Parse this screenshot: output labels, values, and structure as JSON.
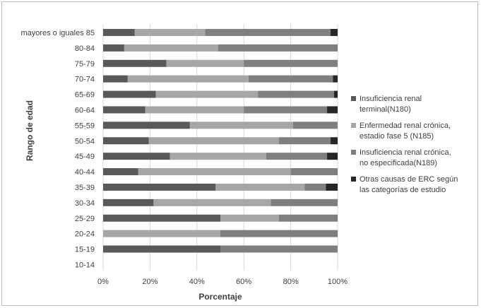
{
  "chart_data": {
    "type": "bar",
    "orientation": "horizontal",
    "stacked": "percent",
    "categories": [
      "mayores o iguales 85",
      "80-84",
      "75-79",
      "70-74",
      "65-69",
      "60-64",
      "55-59",
      "50-54",
      "45-49",
      "40-44",
      "35-39",
      "30-34",
      "25-29",
      "20-24",
      "15-19",
      "10-14"
    ],
    "series": [
      {
        "key": "s1",
        "label_lines": [
          "Insuficiencia renal",
          "terminal(N180)"
        ],
        "color": "#595959",
        "values": [
          13.5,
          9,
          27,
          10.5,
          22.5,
          18,
          37,
          19.5,
          28.5,
          15,
          48,
          21.5,
          50,
          0,
          50,
          0
        ]
      },
      {
        "key": "s2",
        "label_lines": [
          "Enfermedad renal crónica,",
          "estadio fase 5 (N185)"
        ],
        "color": "#a6a6a6",
        "values": [
          30,
          40,
          33,
          51.5,
          43.5,
          42,
          44,
          55.5,
          41,
          65,
          38,
          50,
          25,
          50,
          0,
          0
        ]
      },
      {
        "key": "s3",
        "label_lines": [
          "Insuficiencia renal crónica,",
          "no especificada(N189)"
        ],
        "color": "#7f7f7f",
        "values": [
          53.5,
          51,
          40,
          36,
          32.5,
          35.5,
          19,
          22,
          26,
          20,
          9,
          28.5,
          25,
          50,
          50,
          0
        ]
      },
      {
        "key": "s4",
        "label_lines": [
          "Otras causas de ERC según",
          "las categorías de estudio"
        ],
        "color": "#262626",
        "values": [
          3,
          0,
          0,
          2,
          1.5,
          4.5,
          0,
          3,
          4.5,
          0,
          5,
          0,
          0,
          0,
          0,
          0
        ]
      }
    ],
    "xlabel": "Porcentaje",
    "ylabel": "Rango de edad",
    "xlim": [
      0,
      100
    ],
    "xticks": [
      "0%",
      "20%",
      "40%",
      "60%",
      "80%",
      "100%"
    ],
    "legend_position": "right",
    "grid": "vertical"
  }
}
